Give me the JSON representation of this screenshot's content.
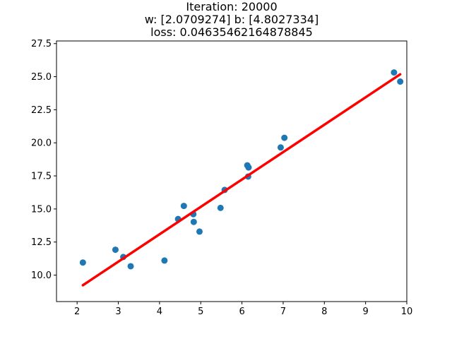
{
  "chart_data": {
    "type": "scatter",
    "title_lines": [
      "Iteration: 20000",
      "w: [2.0709274] b: [4.8027334]",
      "loss: 0.04635462164878845"
    ],
    "xlabel": "",
    "ylabel": "",
    "xlim": [
      1.5,
      10.0
    ],
    "ylim": [
      8.0,
      27.7
    ],
    "xticks": [
      2,
      3,
      4,
      5,
      6,
      7,
      8,
      9,
      10
    ],
    "xtick_labels": [
      "2",
      "3",
      "4",
      "5",
      "6",
      "7",
      "8",
      "9",
      "10"
    ],
    "yticks": [
      10.0,
      12.5,
      15.0,
      17.5,
      20.0,
      22.5,
      25.0,
      27.5
    ],
    "ytick_labels": [
      "10.0",
      "12.5",
      "15.0",
      "17.5",
      "20.0",
      "22.5",
      "25.0",
      "27.5"
    ],
    "grid": false,
    "colors": {
      "points": "#1f77b4",
      "fit_line": "#ff0000"
    },
    "series": [
      {
        "type": "scatter",
        "x": [
          2.14,
          2.93,
          3.12,
          3.3,
          4.12,
          4.45,
          4.59,
          4.82,
          4.83,
          4.97,
          5.48,
          5.58,
          6.13,
          6.15,
          6.16,
          6.94,
          7.03,
          9.69,
          9.84
        ],
        "y": [
          10.95,
          11.92,
          11.37,
          10.67,
          11.1,
          14.24,
          15.23,
          14.61,
          14.02,
          13.29,
          15.08,
          16.44,
          18.3,
          17.45,
          18.14,
          19.65,
          20.38,
          25.32,
          24.63
        ]
      },
      {
        "type": "line",
        "x": [
          2.14,
          9.84
        ],
        "y": [
          9.235,
          25.18
        ]
      }
    ]
  }
}
